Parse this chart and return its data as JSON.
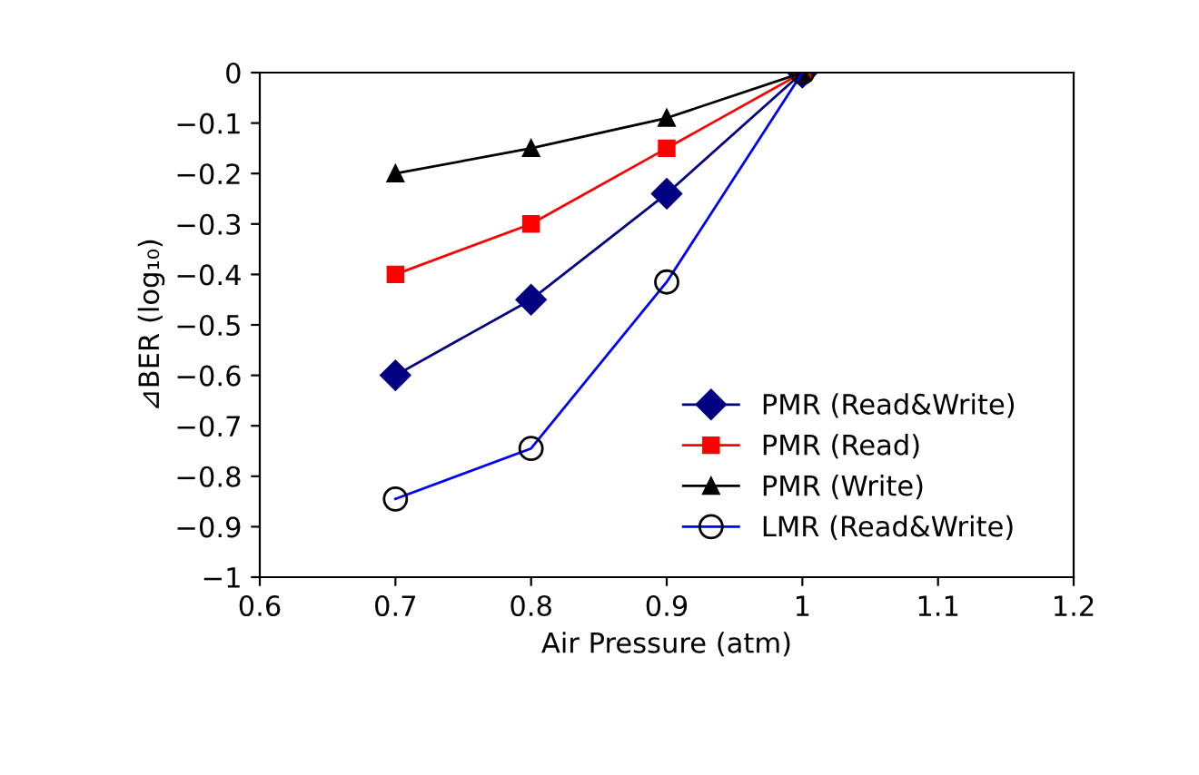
{
  "chart_data": {
    "type": "line",
    "xlabel": "Air Pressure (atm)",
    "ylabel": "⊿BER (log₁₀)",
    "x": [
      0.7,
      0.8,
      0.9,
      1.0
    ],
    "series": [
      {
        "name": "PMR (Read&Write)",
        "color": "#000080",
        "marker": "diamond",
        "values": [
          -0.6,
          -0.45,
          -0.24,
          0
        ]
      },
      {
        "name": "PMR (Read)",
        "color": "#ff0000",
        "marker": "square",
        "values": [
          -0.4,
          -0.3,
          -0.15,
          0
        ]
      },
      {
        "name": "PMR (Write)",
        "color": "#000000",
        "marker": "triangle",
        "values": [
          -0.2,
          -0.15,
          -0.09,
          0
        ]
      },
      {
        "name": "LMR (Read&Write)",
        "color": "#0000ff",
        "marker": "circle",
        "values": [
          -0.845,
          -0.745,
          -0.415,
          0
        ]
      }
    ],
    "xlim": [
      0.6,
      1.2
    ],
    "xticks": [
      0.6,
      0.7,
      0.8,
      0.9,
      1,
      1.1,
      1.2
    ],
    "ylim": [
      -1,
      0
    ],
    "yticks": [
      -1,
      -0.9,
      -0.8,
      -0.7,
      -0.6,
      -0.5,
      -0.4,
      -0.3,
      -0.2,
      -0.1,
      0
    ],
    "grid": false,
    "legend": "bottom right"
  }
}
